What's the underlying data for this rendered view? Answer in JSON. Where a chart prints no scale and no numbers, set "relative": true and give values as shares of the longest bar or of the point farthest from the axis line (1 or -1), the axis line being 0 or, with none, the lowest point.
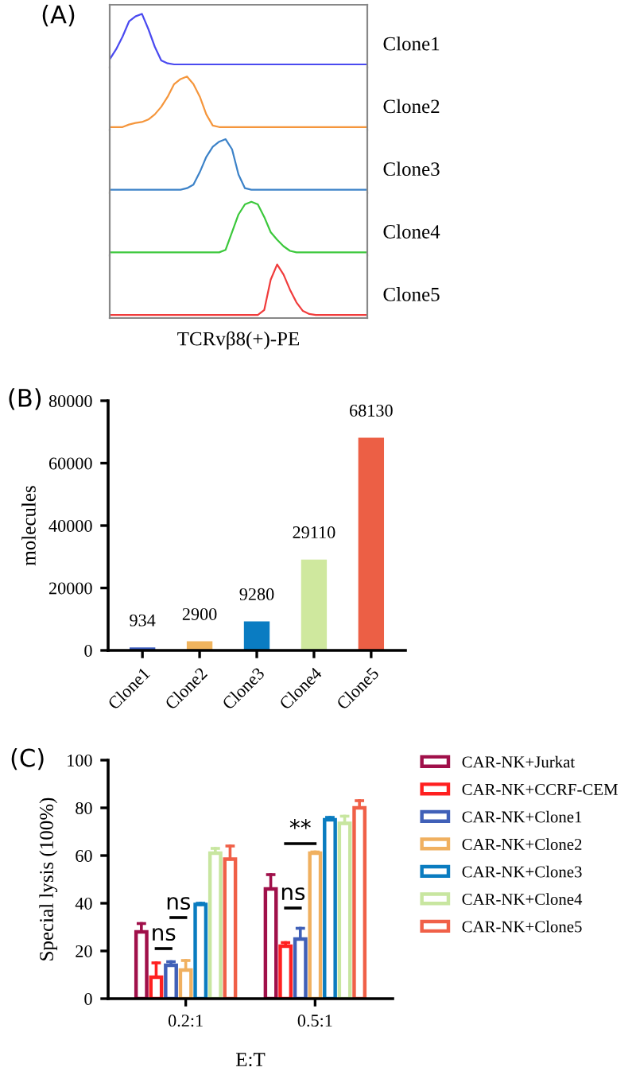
{
  "chart_data": [
    {
      "type": "line",
      "title": "(A)",
      "relative": true,
      "tick_labels": false,
      "categories": [
        null,
        null,
        null,
        null,
        null,
        null,
        null,
        null,
        null,
        null,
        null,
        null,
        null,
        null,
        null,
        null,
        null,
        null,
        null,
        null,
        null,
        null,
        null,
        null,
        null,
        null,
        null,
        null,
        null,
        null,
        null,
        null,
        null,
        null,
        null,
        null,
        null,
        null,
        null,
        null,
        null
      ],
      "series": [
        {
          "name": "Clone1",
          "color": "#4a4af0",
          "values": [
            0.1,
            0.3,
            0.55,
            0.85,
            0.95,
            1.0,
            0.7,
            0.35,
            0.08,
            0.02,
            0,
            0,
            0,
            0,
            0,
            0,
            0,
            0,
            0,
            0,
            0,
            0,
            0,
            0,
            0,
            0,
            0,
            0,
            0,
            0,
            0,
            0,
            0,
            0,
            0,
            0,
            0,
            0,
            0,
            0,
            0
          ]
        }
      ]
    },
    {
      "type": "line",
      "relative": true,
      "tick_labels": false,
      "categories": [
        null,
        null,
        null,
        null,
        null,
        null,
        null,
        null,
        null,
        null,
        null,
        null,
        null,
        null,
        null,
        null,
        null,
        null,
        null,
        null,
        null,
        null,
        null,
        null,
        null,
        null,
        null,
        null,
        null,
        null,
        null,
        null,
        null,
        null,
        null,
        null,
        null,
        null,
        null,
        null,
        null
      ],
      "series": [
        {
          "name": "Clone2",
          "color": "#f5963c",
          "values": [
            0,
            0,
            0,
            0.05,
            0.08,
            0.1,
            0.15,
            0.25,
            0.4,
            0.6,
            0.85,
            0.95,
            1.0,
            0.85,
            0.6,
            0.25,
            0.03,
            0,
            0,
            0,
            0,
            0,
            0,
            0,
            0,
            0,
            0,
            0,
            0,
            0,
            0,
            0,
            0,
            0,
            0,
            0,
            0,
            0,
            0,
            0,
            0
          ]
        }
      ]
    },
    {
      "type": "line",
      "relative": true,
      "tick_labels": false,
      "categories": [
        null,
        null,
        null,
        null,
        null,
        null,
        null,
        null,
        null,
        null,
        null,
        null,
        null,
        null,
        null,
        null,
        null,
        null,
        null,
        null,
        null,
        null,
        null,
        null,
        null,
        null,
        null,
        null,
        null,
        null,
        null,
        null,
        null,
        null,
        null,
        null,
        null,
        null,
        null,
        null,
        null
      ],
      "series": [
        {
          "name": "Clone3",
          "color": "#3c82c8",
          "values": [
            0,
            0,
            0,
            0,
            0,
            0,
            0,
            0,
            0,
            0,
            0,
            0,
            0.03,
            0.1,
            0.35,
            0.65,
            0.85,
            0.95,
            1.0,
            0.8,
            0.3,
            0.03,
            0,
            0,
            0,
            0,
            0,
            0,
            0,
            0,
            0,
            0,
            0,
            0,
            0,
            0,
            0,
            0,
            0,
            0,
            0
          ]
        }
      ]
    },
    {
      "type": "line",
      "relative": true,
      "tick_labels": false,
      "categories": [
        null,
        null,
        null,
        null,
        null,
        null,
        null,
        null,
        null,
        null,
        null,
        null,
        null,
        null,
        null,
        null,
        null,
        null,
        null,
        null,
        null,
        null,
        null,
        null,
        null,
        null,
        null,
        null,
        null,
        null,
        null,
        null,
        null,
        null,
        null,
        null,
        null,
        null,
        null,
        null,
        null
      ],
      "series": [
        {
          "name": "Clone4",
          "color": "#3cc83c",
          "values": [
            0,
            0,
            0,
            0,
            0,
            0,
            0,
            0,
            0,
            0,
            0,
            0,
            0,
            0,
            0,
            0,
            0,
            0,
            0.05,
            0.4,
            0.75,
            0.95,
            1.0,
            0.95,
            0.7,
            0.4,
            0.25,
            0.12,
            0.03,
            0,
            0,
            0,
            0,
            0,
            0,
            0,
            0,
            0,
            0,
            0,
            0
          ]
        }
      ]
    },
    {
      "type": "line",
      "relative": true,
      "tick_labels": false,
      "xlabel": "TCRvβ8(+)-PE",
      "categories": [
        null,
        null,
        null,
        null,
        null,
        null,
        null,
        null,
        null,
        null,
        null,
        null,
        null,
        null,
        null,
        null,
        null,
        null,
        null,
        null,
        null,
        null,
        null,
        null,
        null,
        null,
        null,
        null,
        null,
        null,
        null,
        null,
        null,
        null,
        null,
        null,
        null,
        null,
        null,
        null,
        null
      ],
      "series": [
        {
          "name": "Clone5",
          "color": "#f03c3c",
          "values": [
            0,
            0,
            0,
            0,
            0,
            0,
            0,
            0,
            0,
            0,
            0,
            0,
            0,
            0,
            0,
            0,
            0,
            0,
            0,
            0,
            0,
            0,
            0,
            0,
            0.1,
            0.7,
            1.0,
            0.8,
            0.5,
            0.25,
            0.08,
            0.02,
            0,
            0,
            0,
            0,
            0,
            0,
            0,
            0,
            0
          ]
        }
      ]
    },
    {
      "type": "bar",
      "title": "(B)",
      "ylabel": "molecules",
      "categories": [
        "Clone1",
        "Clone2",
        "Clone3",
        "Clone4",
        "Clone5"
      ],
      "values": [
        934,
        2900,
        9280,
        29110,
        68130
      ],
      "colors": [
        "#3a5bbd",
        "#f0b45e",
        "#0a7cc2",
        "#cfe89e",
        "#ec5f45"
      ],
      "data_labels": true,
      "ylim": [
        0,
        80000
      ],
      "yticks": [
        0,
        20000,
        40000,
        60000,
        80000
      ]
    },
    {
      "type": "bar",
      "title": "(C)",
      "xlabel": "E:T",
      "ylabel": "Special lysis (100%)",
      "categories": [
        "0.2:1",
        "0.5:1"
      ],
      "ylim": [
        0,
        100
      ],
      "yticks": [
        0,
        20,
        40,
        60,
        80,
        100
      ],
      "legend": "right",
      "annotations": [
        "ns",
        "ns",
        "ns",
        "**"
      ],
      "series": [
        {
          "name": "CAR-NK+Jurkat",
          "color": "#a0104a",
          "values": [
            28,
            46
          ],
          "errors": [
            3.5,
            6
          ]
        },
        {
          "name": "CAR-NK+CCRF-CEM",
          "color": "#ff2020",
          "values": [
            9,
            22
          ],
          "errors": [
            6,
            1.5
          ]
        },
        {
          "name": "CAR-NK+Clone1",
          "color": "#4060b8",
          "values": [
            14,
            25
          ],
          "errors": [
            1.5,
            4.5
          ]
        },
        {
          "name": "CAR-NK+Clone2",
          "color": "#f0b060",
          "values": [
            12,
            61
          ],
          "errors": [
            4,
            0.5
          ]
        },
        {
          "name": "CAR-NK+Clone3",
          "color": "#0a7cc0",
          "values": [
            39.5,
            75
          ],
          "errors": [
            0.5,
            1
          ]
        },
        {
          "name": "CAR-NK+Clone4",
          "color": "#c8e6a0",
          "values": [
            61,
            73.5
          ],
          "errors": [
            2,
            3
          ]
        },
        {
          "name": "CAR-NK+Clone5",
          "color": "#f06048",
          "values": [
            58.5,
            80
          ],
          "errors": [
            5.5,
            3
          ]
        }
      ]
    }
  ]
}
